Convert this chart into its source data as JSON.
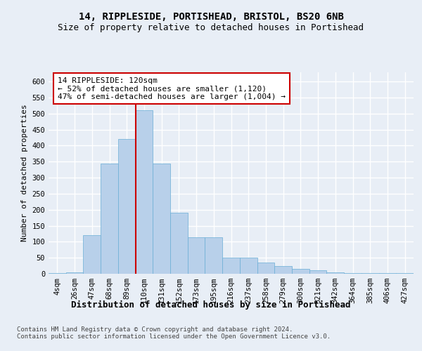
{
  "title1": "14, RIPPLESIDE, PORTISHEAD, BRISTOL, BS20 6NB",
  "title2": "Size of property relative to detached houses in Portishead",
  "xlabel": "Distribution of detached houses by size in Portishead",
  "ylabel": "Number of detached properties",
  "categories": [
    "4sqm",
    "26sqm",
    "47sqm",
    "68sqm",
    "89sqm",
    "110sqm",
    "131sqm",
    "152sqm",
    "173sqm",
    "195sqm",
    "216sqm",
    "237sqm",
    "258sqm",
    "279sqm",
    "300sqm",
    "321sqm",
    "342sqm",
    "364sqm",
    "385sqm",
    "406sqm",
    "427sqm"
  ],
  "values": [
    2,
    5,
    120,
    345,
    420,
    510,
    345,
    190,
    115,
    115,
    50,
    50,
    35,
    25,
    15,
    10,
    5,
    3,
    2,
    2,
    2
  ],
  "bar_color": "#b8d0ea",
  "bar_edge_color": "#6aaed6",
  "bar_width": 1.0,
  "highlight_bar_index": 5,
  "highlight_line_color": "#cc0000",
  "annotation_text": "14 RIPPLESIDE: 120sqm\n← 52% of detached houses are smaller (1,120)\n47% of semi-detached houses are larger (1,004) →",
  "annotation_box_color": "#ffffff",
  "annotation_box_edge_color": "#cc0000",
  "ylim": [
    0,
    630
  ],
  "yticks": [
    0,
    50,
    100,
    150,
    200,
    250,
    300,
    350,
    400,
    450,
    500,
    550,
    600
  ],
  "bg_color": "#e8eef6",
  "plot_bg_color": "#e8eef6",
  "grid_color": "#ffffff",
  "footer_text": "Contains HM Land Registry data © Crown copyright and database right 2024.\nContains public sector information licensed under the Open Government Licence v3.0.",
  "title1_fontsize": 10,
  "title2_fontsize": 9,
  "xlabel_fontsize": 9,
  "ylabel_fontsize": 8,
  "tick_fontsize": 7.5,
  "annotation_fontsize": 8,
  "footer_fontsize": 6.5
}
